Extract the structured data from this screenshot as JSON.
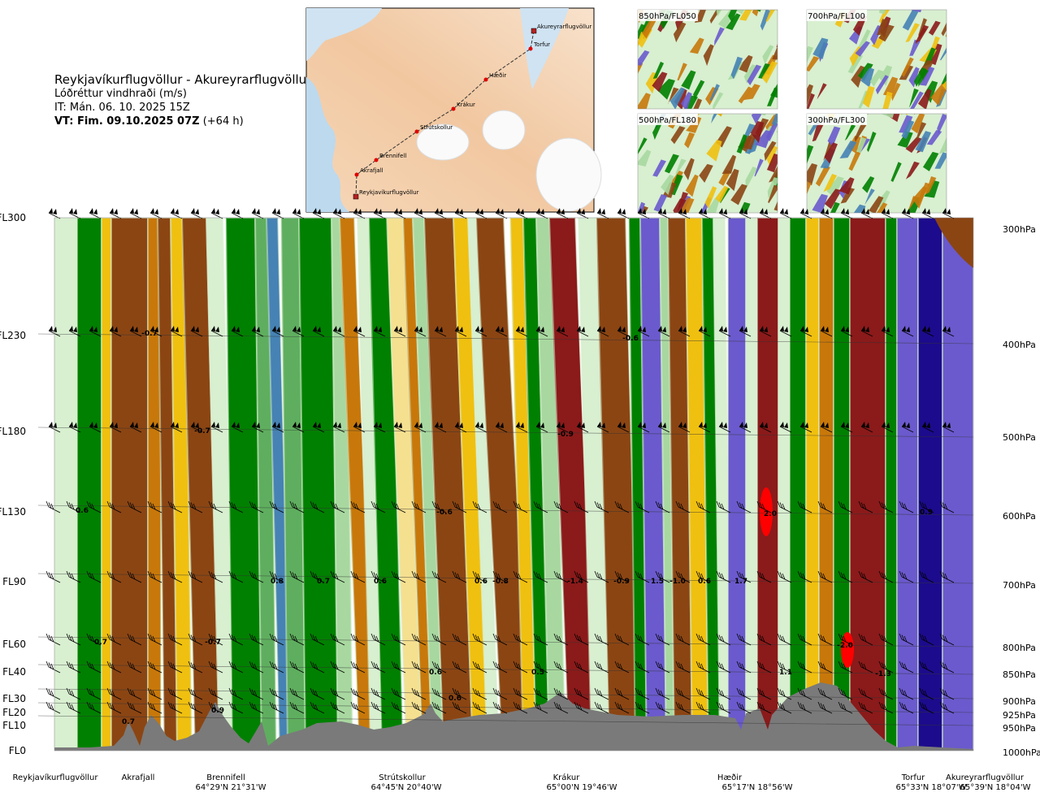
{
  "header": {
    "title": "Reykjavíkurflugvöllur - Akureyrarflugvöllur",
    "subtitle": "Lóðréttur vindhraði (m/s)",
    "it": "IT: Mán. 06. 10. 2025 15Z",
    "vt_bold": "VT: Fim. 09.10.2025 07Z",
    "vt_rest": " (+64 h)"
  },
  "map": {
    "points": [
      {
        "name": "Akureyrarflugvöllur",
        "type": "airport"
      },
      {
        "name": "Torfur",
        "type": "waypoint"
      },
      {
        "name": "Hæðir",
        "type": "waypoint"
      },
      {
        "name": "Krákur",
        "type": "waypoint"
      },
      {
        "name": "Strútskollur",
        "type": "waypoint"
      },
      {
        "name": "Brennifell",
        "type": "waypoint"
      },
      {
        "name": "Akrafjall",
        "type": "waypoint"
      },
      {
        "name": "Reykjavíkurflugvöllur",
        "type": "airport"
      }
    ]
  },
  "mini_maps": [
    {
      "label": "850hPa/FL050"
    },
    {
      "label": "700hPa/FL100"
    },
    {
      "label": "500hPa/FL180"
    },
    {
      "label": "300hPa/FL300"
    }
  ],
  "chart_data": {
    "type": "heatmap",
    "quantity": "vertical wind speed (m/s)",
    "levels": [
      {
        "fl": "FL300",
        "hpa": "300hPa"
      },
      {
        "fl": "FL230",
        "hpa": "400hPa"
      },
      {
        "fl": "FL180",
        "hpa": "500hPa"
      },
      {
        "fl": "FL130",
        "hpa": "600hPa"
      },
      {
        "fl": "FL90",
        "hpa": "700hPa"
      },
      {
        "fl": "FL60",
        "hpa": "800hPa"
      },
      {
        "fl": "FL40",
        "hpa": "850hPa"
      },
      {
        "fl": "FL30",
        "hpa": "900hPa"
      },
      {
        "fl": "FL20",
        "hpa": "925hPa"
      },
      {
        "fl": "FL10",
        "hpa": "950hPa"
      },
      {
        "fl": "FL0",
        "hpa": "1000hPa"
      }
    ],
    "waypoints": [
      {
        "name": "Reykjavíkurflugvöllur",
        "coord": ""
      },
      {
        "name": "Akrafjall",
        "coord": ""
      },
      {
        "name": "Brennifell",
        "coord": "64°29'N 21°31'W"
      },
      {
        "name": "Strútskollur",
        "coord": "64°45'N 20°40'W"
      },
      {
        "name": "Krákur",
        "coord": "65°00'N 19°46'W"
      },
      {
        "name": "Hæðir",
        "coord": "65°17'N 18°56'W"
      },
      {
        "name": "Torfur",
        "coord": "65°33'N 18°07'W"
      },
      {
        "name": "Akureyrarflugvöllur",
        "coord": "65°39'N 18°04'W"
      }
    ],
    "value_labels": [
      {
        "level": "FL230",
        "value": "-0.7"
      },
      {
        "level": "FL230",
        "value": "-0.6"
      },
      {
        "level": "FL180",
        "value": "-0.7"
      },
      {
        "level": "FL180",
        "value": "-0.9"
      },
      {
        "level": "FL130",
        "value": "0.6"
      },
      {
        "level": "FL130",
        "value": "-0.6"
      },
      {
        "level": "FL130",
        "value": "2.0"
      },
      {
        "level": "FL130",
        "value": "0.9"
      },
      {
        "level": "FL90",
        "value": "0.8"
      },
      {
        "level": "FL90",
        "value": "0.7"
      },
      {
        "level": "FL90",
        "value": "0.6"
      },
      {
        "level": "FL90",
        "value": "0.6"
      },
      {
        "level": "FL90",
        "value": "-0.8"
      },
      {
        "level": "FL90",
        "value": "-1.4"
      },
      {
        "level": "FL90",
        "value": "-0.9"
      },
      {
        "level": "FL90",
        "value": "1.5"
      },
      {
        "level": "FL90",
        "value": "-1.0"
      },
      {
        "level": "FL90",
        "value": "0.6"
      },
      {
        "level": "FL90",
        "value": "1.7"
      },
      {
        "level": "FL60",
        "value": "0.7"
      },
      {
        "level": "FL60",
        "value": "-0.7"
      },
      {
        "level": "FL60",
        "value": "-2.0"
      },
      {
        "level": "FL40",
        "value": "0.6"
      },
      {
        "level": "FL40",
        "value": "0.5"
      },
      {
        "level": "FL40",
        "value": "1.1"
      },
      {
        "level": "FL40",
        "value": "-1.3"
      },
      {
        "level": "FL30",
        "value": "0.6"
      },
      {
        "level": "FL20",
        "value": "0.9"
      },
      {
        "level": "FL10",
        "value": "0.7"
      }
    ],
    "colors": {
      "strong_down": "#8B1A1A",
      "down": "#8B4513",
      "moderate_down": "#C8780A",
      "weak_down": "#F0C010",
      "slight_down": "#F5E090",
      "neutral": "#FFFFFF",
      "slight_up": "#D8EFD0",
      "weak_up": "#A8D8A0",
      "moderate_up": "#5FAE5F",
      "up": "#008000",
      "strong_up": "#4682B4",
      "very_strong_up": "#6A5ACD",
      "extreme_up": "#1C0B8C",
      "terrain": "#7A7A7A"
    }
  }
}
